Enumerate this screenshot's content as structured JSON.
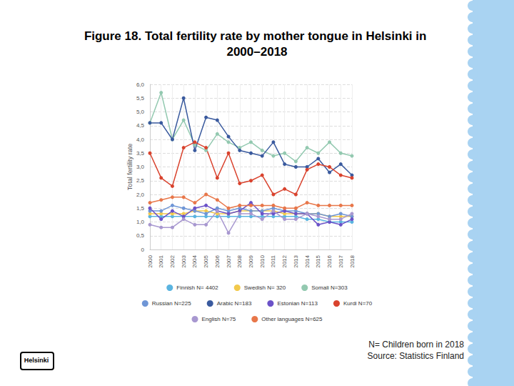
{
  "chart_data": {
    "type": "line",
    "title": "Figure 18. Total fertility rate by mother tongue in Helsinki in 2000–2018",
    "y_label": "Total fertility rate",
    "categories": [
      "2000",
      "2001",
      "2002",
      "2003",
      "2004",
      "2005",
      "2006",
      "2007",
      "2008",
      "2009",
      "2010",
      "2011",
      "2012",
      "2013",
      "2014",
      "2015",
      "2016",
      "2017",
      "2018"
    ],
    "series": [
      {
        "name": "Finnish N= 4402",
        "color": "#5ab4e0",
        "values": [
          1.2,
          1.2,
          1.2,
          1.2,
          1.2,
          1.2,
          1.2,
          1.2,
          1.2,
          1.2,
          1.2,
          1.2,
          1.2,
          1.2,
          1.1,
          1.1,
          1.0,
          1.0,
          1.0
        ]
      },
      {
        "name": "Swedish N= 320",
        "color": "#f2c94c",
        "values": [
          1.3,
          1.3,
          1.3,
          1.3,
          1.4,
          1.4,
          1.3,
          1.3,
          1.4,
          1.4,
          1.4,
          1.4,
          1.3,
          1.3,
          1.3,
          1.3,
          1.2,
          1.2,
          1.2
        ]
      },
      {
        "name": "Somali N=303",
        "color": "#93c9b0",
        "values": [
          4.6,
          5.7,
          4.0,
          4.7,
          3.8,
          3.6,
          4.2,
          3.9,
          3.7,
          3.9,
          3.6,
          3.4,
          3.5,
          3.2,
          3.7,
          3.5,
          3.9,
          3.5,
          3.4
        ]
      },
      {
        "name": "Russian N=225",
        "color": "#6f96d6",
        "values": [
          1.4,
          1.4,
          1.6,
          1.5,
          1.4,
          1.3,
          1.5,
          1.4,
          1.5,
          1.4,
          1.4,
          1.5,
          1.4,
          1.4,
          1.3,
          1.3,
          1.2,
          1.3,
          1.2
        ]
      },
      {
        "name": "Arabic N=183",
        "color": "#3a5a9e",
        "values": [
          4.6,
          4.6,
          4.0,
          5.5,
          3.6,
          4.8,
          4.7,
          4.1,
          3.6,
          3.5,
          3.4,
          3.9,
          3.1,
          3.0,
          3.0,
          3.3,
          2.8,
          3.1,
          2.7
        ]
      },
      {
        "name": "Estonian N=113",
        "color": "#6b52c8",
        "values": [
          1.5,
          1.1,
          1.4,
          1.2,
          1.5,
          1.6,
          1.4,
          1.3,
          1.4,
          1.7,
          1.3,
          1.3,
          1.4,
          1.3,
          1.3,
          0.9,
          1.0,
          0.9,
          1.1
        ]
      },
      {
        "name": "Kurdi N=70",
        "color": "#d9432e",
        "values": [
          3.5,
          2.6,
          2.3,
          3.7,
          3.9,
          3.7,
          2.6,
          3.5,
          2.4,
          2.5,
          2.7,
          2.0,
          2.2,
          2.0,
          2.9,
          3.1,
          3.0,
          2.7,
          2.6
        ]
      },
      {
        "name": "English N=75",
        "color": "#a898d0",
        "values": [
          0.9,
          0.8,
          0.8,
          1.1,
          0.9,
          0.9,
          1.4,
          0.6,
          1.3,
          1.3,
          1.1,
          1.4,
          1.1,
          1.1,
          1.3,
          1.2,
          1.1,
          1.1,
          1.3
        ]
      },
      {
        "name": "Other languages N=625",
        "color": "#e8774a",
        "values": [
          1.7,
          1.8,
          1.9,
          1.9,
          1.7,
          2.0,
          1.8,
          1.5,
          1.6,
          1.6,
          1.6,
          1.6,
          1.5,
          1.5,
          1.7,
          1.6,
          1.6,
          1.6,
          1.6
        ]
      }
    ],
    "ylim": [
      0,
      6
    ],
    "yticks": [
      0,
      {
        "value": 0.5,
        "label": "0,5"
      },
      {
        "value": 1,
        "label": "1,0"
      },
      {
        "value": 1.5,
        "label": "1,5"
      },
      {
        "value": 2,
        "label": "2,0"
      },
      {
        "value": 2.5,
        "label": "2,5"
      },
      {
        "value": 3,
        "label": "3,0"
      },
      {
        "value": 3.5,
        "label": "3,5"
      },
      {
        "value": 4,
        "label": "4,0"
      },
      {
        "value": 4.5,
        "label": "4,5"
      },
      {
        "value": 5,
        "label": "5,0"
      },
      {
        "value": 5.5,
        "label": "5,5"
      },
      {
        "value": 6,
        "label": "6,0"
      }
    ],
    "grid": true,
    "legend": "bottom",
    "marker": "circle",
    "notes": [
      "N= Children born in 2018",
      "Source: Statistics Finland"
    ],
    "logo_text": "Helsinki"
  }
}
